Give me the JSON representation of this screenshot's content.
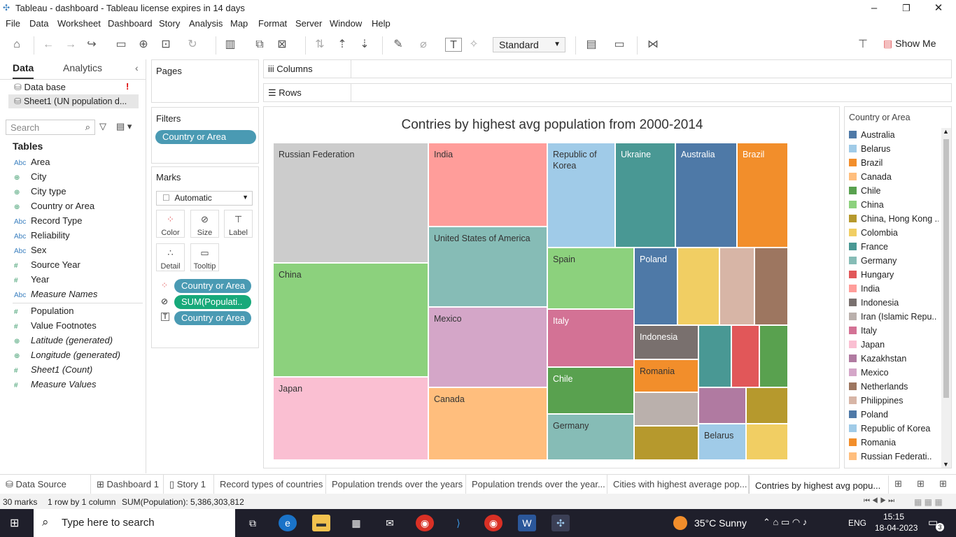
{
  "window": {
    "title": "Tableau - dashboard - Tableau license expires in 14 days"
  },
  "menu": [
    "File",
    "Data",
    "Worksheet",
    "Dashboard",
    "Story",
    "Analysis",
    "Map",
    "Format",
    "Server",
    "Window",
    "Help"
  ],
  "toolbar": {
    "fit": "Standard",
    "show_me": "Show Me"
  },
  "left": {
    "tab_data": "Data",
    "tab_analytics": "Analytics",
    "sources": [
      "Data base",
      "Sheet1 (UN population d..."
    ],
    "search_placeholder": "Search",
    "tables_label": "Tables",
    "fields": [
      {
        "type": "Abc",
        "name": "Area"
      },
      {
        "type": "geo",
        "name": "City"
      },
      {
        "type": "geo",
        "name": "City type"
      },
      {
        "type": "geo",
        "name": "Country or Area"
      },
      {
        "type": "Abc",
        "name": "Record Type"
      },
      {
        "type": "Abc",
        "name": "Reliability"
      },
      {
        "type": "Abc",
        "name": "Sex"
      },
      {
        "type": "#",
        "name": "Source Year"
      },
      {
        "type": "#",
        "name": "Year"
      },
      {
        "type": "Abc",
        "name": "Measure Names"
      }
    ],
    "measures": [
      {
        "type": "#",
        "name": "Population"
      },
      {
        "type": "#",
        "name": "Value Footnotes"
      },
      {
        "type": "geo",
        "name": "Latitude (generated)"
      },
      {
        "type": "geo",
        "name": "Longitude (generated)"
      },
      {
        "type": "#",
        "name": "Sheet1 (Count)"
      },
      {
        "type": "#",
        "name": "Measure Values"
      }
    ]
  },
  "shelves": {
    "pages": "Pages",
    "columns": "Columns",
    "rows": "Rows",
    "filters": "Filters",
    "filter_pill": "Country or Area",
    "marks": "Marks",
    "mark_type": "Automatic",
    "mark_buttons": [
      "Color",
      "Size",
      "Label",
      "Detail",
      "Tooltip"
    ],
    "mark_pills": [
      "Country or Area",
      "SUM(Populati..",
      "Country or Area"
    ]
  },
  "viz": {
    "title": "Contries by highest avg population from 2000-2014"
  },
  "chart_data": {
    "type": "treemap",
    "title": "Contries by highest avg population from 2000-2014",
    "labeled_cells": [
      "Russian Federation",
      "China",
      "Japan",
      "India",
      "United States of America",
      "Mexico",
      "Canada",
      "Republic of Korea",
      "Ukraine",
      "Australia",
      "Brazil",
      "Spain",
      "Poland",
      "Italy",
      "Indonesia",
      "Romania",
      "Chile",
      "Germany",
      "Belarus"
    ],
    "total_label": "SUM(Population): 5,386,303,812",
    "marks": 30
  },
  "legend": {
    "title": "Country or Area",
    "items": [
      {
        "name": "Australia",
        "color": "#4e79a7"
      },
      {
        "name": "Belarus",
        "color": "#a0cbe8"
      },
      {
        "name": "Brazil",
        "color": "#f28e2b"
      },
      {
        "name": "Canada",
        "color": "#ffbe7d"
      },
      {
        "name": "Chile",
        "color": "#59a14f"
      },
      {
        "name": "China",
        "color": "#8cd17d"
      },
      {
        "name": "China, Hong Kong ..",
        "color": "#b6992d"
      },
      {
        "name": "Colombia",
        "color": "#f1ce63"
      },
      {
        "name": "France",
        "color": "#499894"
      },
      {
        "name": "Germany",
        "color": "#86bcb6"
      },
      {
        "name": "Hungary",
        "color": "#e15759"
      },
      {
        "name": "India",
        "color": "#ff9d9a"
      },
      {
        "name": "Indonesia",
        "color": "#79706e"
      },
      {
        "name": "Iran (Islamic Repu..",
        "color": "#bab0ac"
      },
      {
        "name": "Italy",
        "color": "#d37295"
      },
      {
        "name": "Japan",
        "color": "#fabfd2"
      },
      {
        "name": "Kazakhstan",
        "color": "#b07aa1"
      },
      {
        "name": "Mexico",
        "color": "#d4a6c8"
      },
      {
        "name": "Netherlands",
        "color": "#9d7660"
      },
      {
        "name": "Philippines",
        "color": "#d7b5a6"
      },
      {
        "name": "Poland",
        "color": "#4e79a7"
      },
      {
        "name": "Republic of Korea",
        "color": "#a0cbe8"
      },
      {
        "name": "Romania",
        "color": "#f28e2b"
      },
      {
        "name": "Russian Federati..",
        "color": "#ffbe7d"
      }
    ]
  },
  "sheet_tabs": [
    "Data Source",
    "Dashboard 1",
    "Story 1",
    "Record types of countries",
    "Population trends over the years",
    "Population trends over the year...",
    "Cities with highest average pop...",
    "Contries by highest avg popu..."
  ],
  "status": {
    "marks": "30 marks",
    "rows": "1 row by 1 column",
    "sum": "SUM(Population): 5,386,303,812"
  },
  "taskbar": {
    "search": "Type here to search",
    "weather": "35°C  Sunny",
    "lang": "ENG",
    "time": "15:15",
    "date": "18-04-2023",
    "notif": "3"
  }
}
